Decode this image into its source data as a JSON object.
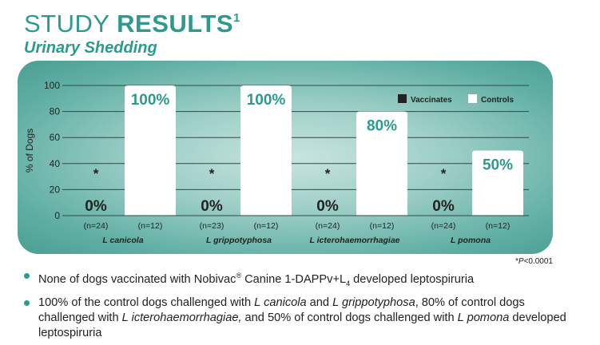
{
  "header": {
    "title_part1": "STUDY ",
    "title_part2": "RESULTS",
    "title_sup": "1",
    "subtitle": "Urinary Shedding"
  },
  "colors": {
    "accent": "#2c9a8e",
    "vaccinates": "#222222",
    "controls": "#ffffff",
    "bar_text": "#2c9a8e",
    "zero_text": "#222222"
  },
  "chart_data": {
    "type": "bar",
    "categories": [
      "L canicola",
      "L grippotyphosa",
      "L icterohaemorrhagiae",
      "L pomona"
    ],
    "ylabel": "% of Dogs",
    "ylim": [
      0,
      100
    ],
    "yticks": [
      "0",
      "20",
      "40",
      "60",
      "80",
      "100"
    ],
    "grid": true,
    "legend_position": "top-right",
    "series": [
      {
        "name": "Vaccinates",
        "values": [
          0,
          0,
          0,
          0
        ],
        "labels": [
          "0%",
          "0%",
          "0%",
          "0%"
        ],
        "n": [
          "(n=24)",
          "(n=23)",
          "(n=24)",
          "(n=24)"
        ],
        "markers": [
          "*",
          "*",
          "*",
          "*"
        ]
      },
      {
        "name": "Controls",
        "values": [
          100,
          100,
          80,
          50
        ],
        "labels": [
          "100%",
          "100%",
          "80%",
          "50%"
        ],
        "n": [
          "(n=12)",
          "(n=12)",
          "(n=12)",
          "(n=12)"
        ]
      }
    ]
  },
  "footnote": {
    "mark": "*",
    "italic": "P",
    "rest": "<0.0001"
  },
  "bullets": {
    "b1": {
      "t1": "None of dogs vaccinated with Nobivac",
      "reg": "®",
      "t2": " Canine 1-DAPPv+L",
      "sub": "4",
      "t3": " developed leptospiruria"
    },
    "b2": {
      "t1": "100% of the control dogs challenged with ",
      "i1": "L canicola",
      "t2": " and ",
      "i2": "L grippotyphosa",
      "t3": ", 80% of control dogs challenged with ",
      "i3": "L icterohaemorrhagiae,",
      "t4": " and 50% of control dogs challenged with ",
      "i4": "L pomona",
      "t5": " developed leptospiruria"
    }
  }
}
